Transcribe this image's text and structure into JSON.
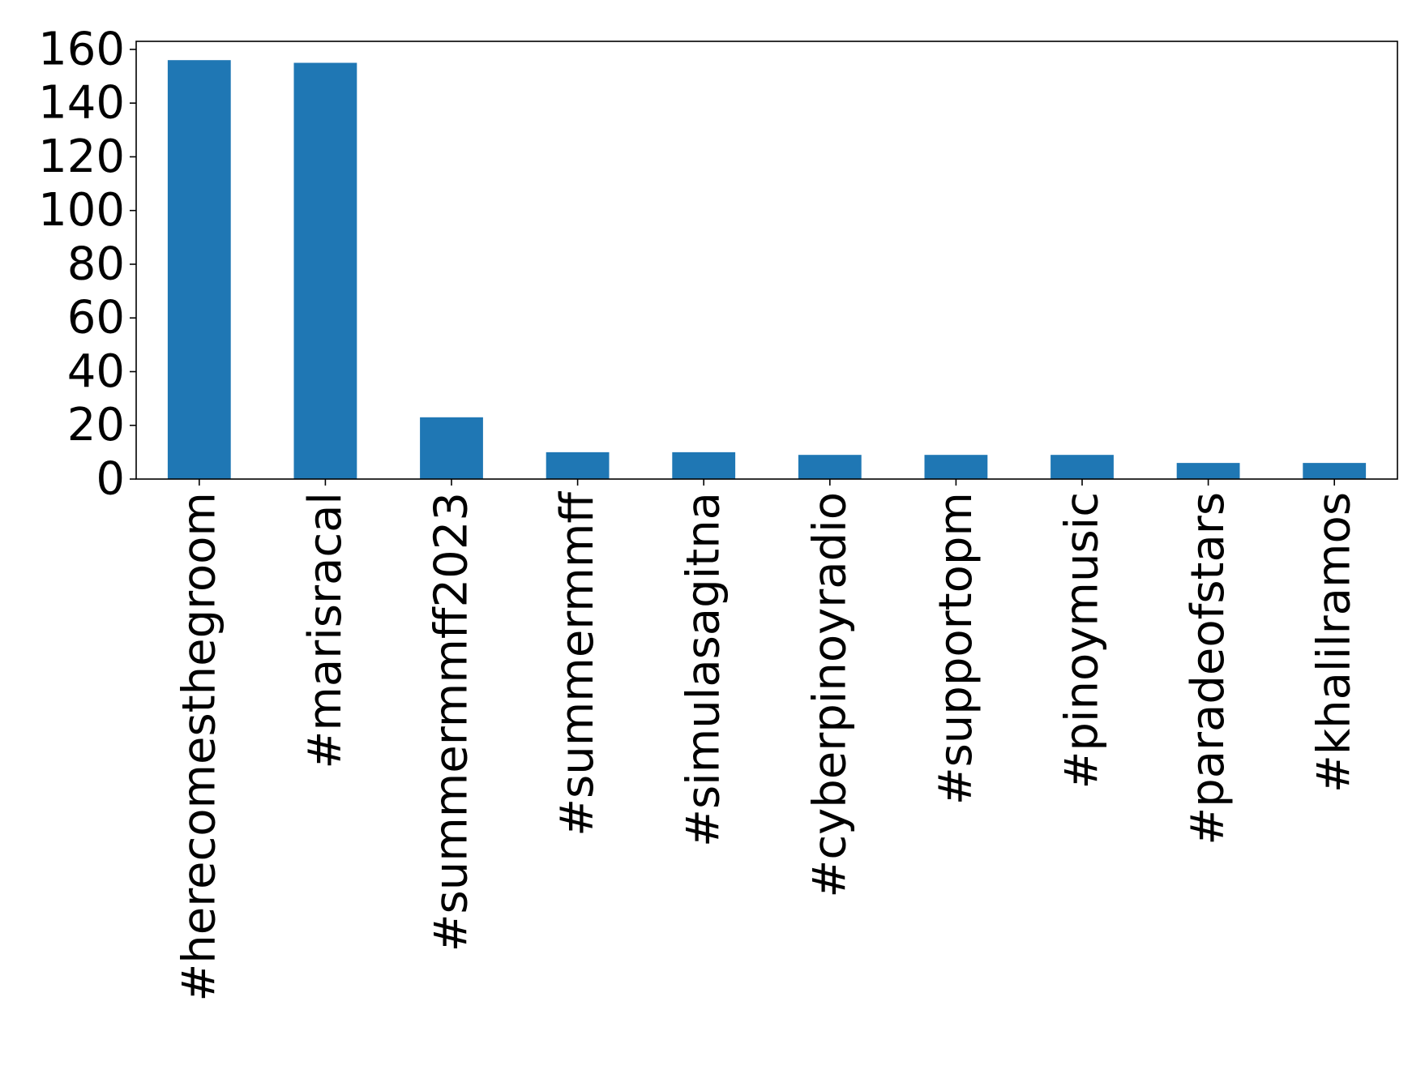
{
  "chart_data": {
    "type": "bar",
    "title": "",
    "xlabel": "",
    "ylabel": "",
    "categories": [
      "#herecomesthegroom",
      "#marisracal",
      "#summermmff2023",
      "#summermmff",
      "#simulasagitna",
      "#cyberpinoyradio",
      "#supportopm",
      "#pinoymusic",
      "#paradeofstars",
      "#khalilramos"
    ],
    "values": [
      156,
      155,
      23,
      10,
      10,
      9,
      9,
      9,
      6,
      6
    ],
    "ylim": [
      0,
      163
    ],
    "yticks": [
      0,
      20,
      40,
      60,
      80,
      100,
      120,
      140,
      160
    ],
    "ytick_labels": [
      "0",
      "20",
      "40",
      "60",
      "80",
      "100",
      "120",
      "140",
      "160"
    ],
    "bar_color": "#1f77b4",
    "grid": false,
    "legend": "none"
  }
}
